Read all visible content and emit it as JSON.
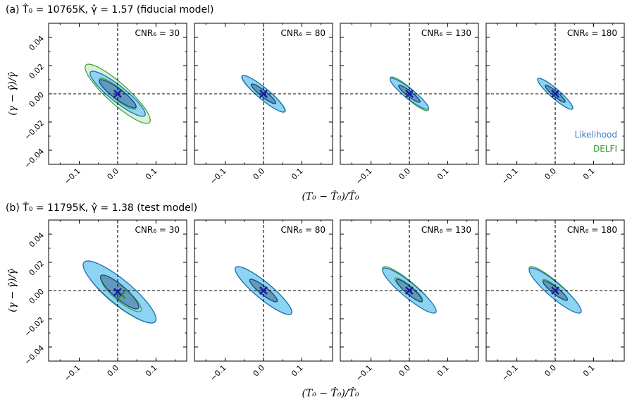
{
  "chart_data": [
    {
      "type": "contour",
      "title": "(a) T̂₀ = 10765K, γ̂ = 1.57 (fiducial model)",
      "xlabel": "(T₀ − T̂₀)/T̂₀",
      "ylabel": "(γ − γ̂)/γ̂",
      "xlim": [
        -0.18,
        0.18
      ],
      "ylim": [
        -0.05,
        0.05
      ],
      "xticks": [
        -0.1,
        0.0,
        0.1
      ],
      "xtick_labels": [
        "−0.1",
        "0.0",
        "0.1"
      ],
      "yticks": [
        -0.04,
        -0.02,
        0.0,
        0.02,
        0.04
      ],
      "ytick_labels": [
        "−0.04",
        "−0.02",
        "0.00",
        "0.02",
        "0.04"
      ],
      "panels": [
        {
          "cnr_label": "CNR₆ = 30",
          "likelihood": {
            "center": [
              0.0,
              0.0
            ],
            "sx": [
              0.048,
              0.072
            ],
            "sy": [
              0.01,
              0.016
            ],
            "rho": -0.9
          },
          "delfi": {
            "center": [
              0.0,
              0.0
            ],
            "sx": [
              0.048,
              0.085
            ],
            "sy": [
              0.011,
              0.021
            ],
            "rho": -0.89
          },
          "truth_marker": [
            0.0,
            0.0
          ],
          "delfi_marker": [
            0.0,
            0.0
          ]
        },
        {
          "cnr_label": "CNR₆ = 80",
          "likelihood": {
            "center": [
              0.0,
              0.0
            ],
            "sx": [
              0.032,
              0.056
            ],
            "sy": [
              0.007,
              0.013
            ],
            "rho": -0.92
          },
          "delfi": {
            "center": [
              0.0,
              0.0
            ],
            "sx": [
              0.031,
              0.057
            ],
            "sy": [
              0.007,
              0.013
            ],
            "rho": -0.92
          },
          "truth_marker": [
            0.0,
            0.0
          ],
          "delfi_marker": [
            0.0,
            0.0
          ]
        },
        {
          "cnr_label": "CNR₆ = 130",
          "likelihood": {
            "center": [
              0.0,
              0.0
            ],
            "sx": [
              0.028,
              0.05
            ],
            "sy": [
              0.006,
              0.011
            ],
            "rho": -0.92
          },
          "delfi": {
            "center": [
              0.0,
              0.0
            ],
            "sx": [
              0.027,
              0.05
            ],
            "sy": [
              0.006,
              0.012
            ],
            "rho": -0.92
          },
          "truth_marker": [
            0.0,
            0.0
          ],
          "delfi_marker": [
            0.0,
            0.0
          ]
        },
        {
          "cnr_label": "CNR₆ = 180",
          "likelihood": {
            "center": [
              0.0,
              0.0
            ],
            "sx": [
              0.026,
              0.046
            ],
            "sy": [
              0.006,
              0.011
            ],
            "rho": -0.92
          },
          "delfi": {
            "center": [
              0.0,
              0.0
            ],
            "sx": [
              0.025,
              0.046
            ],
            "sy": [
              0.006,
              0.011
            ],
            "rho": -0.92
          },
          "truth_marker": [
            0.0,
            0.0
          ],
          "delfi_marker": [
            0.0,
            0.0
          ]
        }
      ],
      "legend": [
        {
          "label": "Likelihood",
          "color": "#3d7fc0"
        },
        {
          "label": "DELFI",
          "color": "#2c9a2c"
        }
      ]
    },
    {
      "type": "contour",
      "title": "(b) T̂₀ = 11795K, γ̂ = 1.38 (test model)",
      "xlabel": "(T₀ − T̂₀)/T̂₀",
      "ylabel": "(γ − γ̂)/γ̂",
      "xlim": [
        -0.18,
        0.18
      ],
      "ylim": [
        -0.05,
        0.05
      ],
      "xticks": [
        -0.1,
        0.0,
        0.1
      ],
      "xtick_labels": [
        "−0.1",
        "0.0",
        "0.1"
      ],
      "yticks": [
        -0.04,
        -0.02,
        0.0,
        0.02,
        0.04
      ],
      "ytick_labels": [
        "−0.04",
        "−0.02",
        "0.00",
        "0.02",
        "0.04"
      ],
      "panels": [
        {
          "cnr_label": "CNR₆ = 30",
          "likelihood": {
            "center": [
              0.005,
              -0.001
            ],
            "sx": [
              0.05,
              0.095
            ],
            "sy": [
              0.012,
              0.022
            ],
            "rho": -0.87
          },
          "delfi": {
            "center": [
              0.01,
              -0.003
            ],
            "sx": [
              0.052,
              0.09
            ],
            "sy": [
              0.012,
              0.02
            ],
            "rho": -0.86
          },
          "truth_marker": [
            0.0,
            -0.001
          ],
          "delfi_marker": [
            0.01,
            -0.003
          ]
        },
        {
          "cnr_label": "CNR₆ = 80",
          "likelihood": {
            "center": [
              0.0,
              0.0
            ],
            "sx": [
              0.036,
              0.074
            ],
            "sy": [
              0.008,
              0.017
            ],
            "rho": -0.9
          },
          "delfi": {
            "center": [
              0.0,
              0.0
            ],
            "sx": [
              0.036,
              0.074
            ],
            "sy": [
              0.008,
              0.017
            ],
            "rho": -0.9
          },
          "truth_marker": [
            0.0,
            0.0
          ],
          "delfi_marker": [
            0.0,
            0.0
          ]
        },
        {
          "cnr_label": "CNR₆ = 130",
          "likelihood": {
            "center": [
              0.0,
              0.0
            ],
            "sx": [
              0.034,
              0.07
            ],
            "sy": [
              0.008,
              0.016
            ],
            "rho": -0.91
          },
          "delfi": {
            "center": [
              -0.002,
              0.001
            ],
            "sx": [
              0.036,
              0.068
            ],
            "sy": [
              0.008,
              0.016
            ],
            "rho": -0.91
          },
          "truth_marker": [
            0.0,
            0.0
          ],
          "delfi_marker": [
            0.0,
            0.0
          ]
        },
        {
          "cnr_label": "CNR₆ = 180",
          "likelihood": {
            "center": [
              0.0,
              0.0
            ],
            "sx": [
              0.032,
              0.068
            ],
            "sy": [
              0.007,
              0.016
            ],
            "rho": -0.91
          },
          "delfi": {
            "center": [
              -0.002,
              0.001
            ],
            "sx": [
              0.03,
              0.066
            ],
            "sy": [
              0.007,
              0.016
            ],
            "rho": -0.91
          },
          "truth_marker": [
            0.0,
            0.0
          ],
          "delfi_marker": [
            0.0,
            0.0
          ]
        }
      ]
    }
  ],
  "colors": {
    "likelihood_outer_fill": "#8dd4f2",
    "likelihood_inner_fill": "#5b8fb5",
    "likelihood_stroke": "#1f6fb0",
    "delfi_outer_fill": "#d9f0d6",
    "delfi_stroke": "#3a9a3a",
    "marker_blue": "#1a1aa8",
    "marker_green": "#2c8a2c"
  }
}
